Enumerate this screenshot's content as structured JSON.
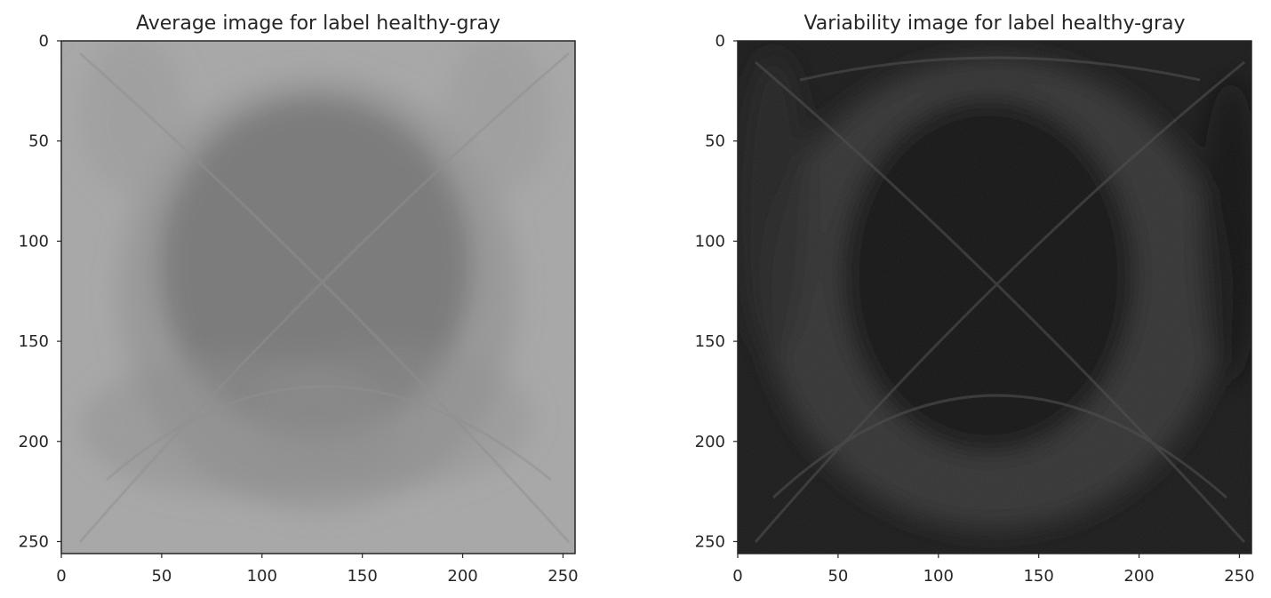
{
  "chart_data": [
    {
      "type": "heatmap",
      "title": "Average image for label healthy-gray",
      "colormap": "gray",
      "image_size": [
        256,
        256
      ],
      "background_color": "#a7a7a7",
      "center_color": "#6f6f6f",
      "xlim": [
        0,
        256
      ],
      "ylim": [
        256,
        0
      ],
      "xticks": [
        0,
        50,
        100,
        150,
        200,
        250
      ],
      "yticks": [
        0,
        50,
        100,
        150,
        200,
        250
      ],
      "grid": false
    },
    {
      "type": "heatmap",
      "title": "Variability image for label healthy-gray",
      "colormap": "gray",
      "image_size": [
        256,
        256
      ],
      "background_color": "#1b1b1b",
      "ring_color": "#3a3a3a",
      "center_color": "#151515",
      "xlim": [
        0,
        256
      ],
      "ylim": [
        256,
        0
      ],
      "xticks": [
        0,
        50,
        100,
        150,
        200,
        250
      ],
      "yticks": [
        0,
        50,
        100,
        150,
        200,
        250
      ],
      "grid": false
    }
  ]
}
